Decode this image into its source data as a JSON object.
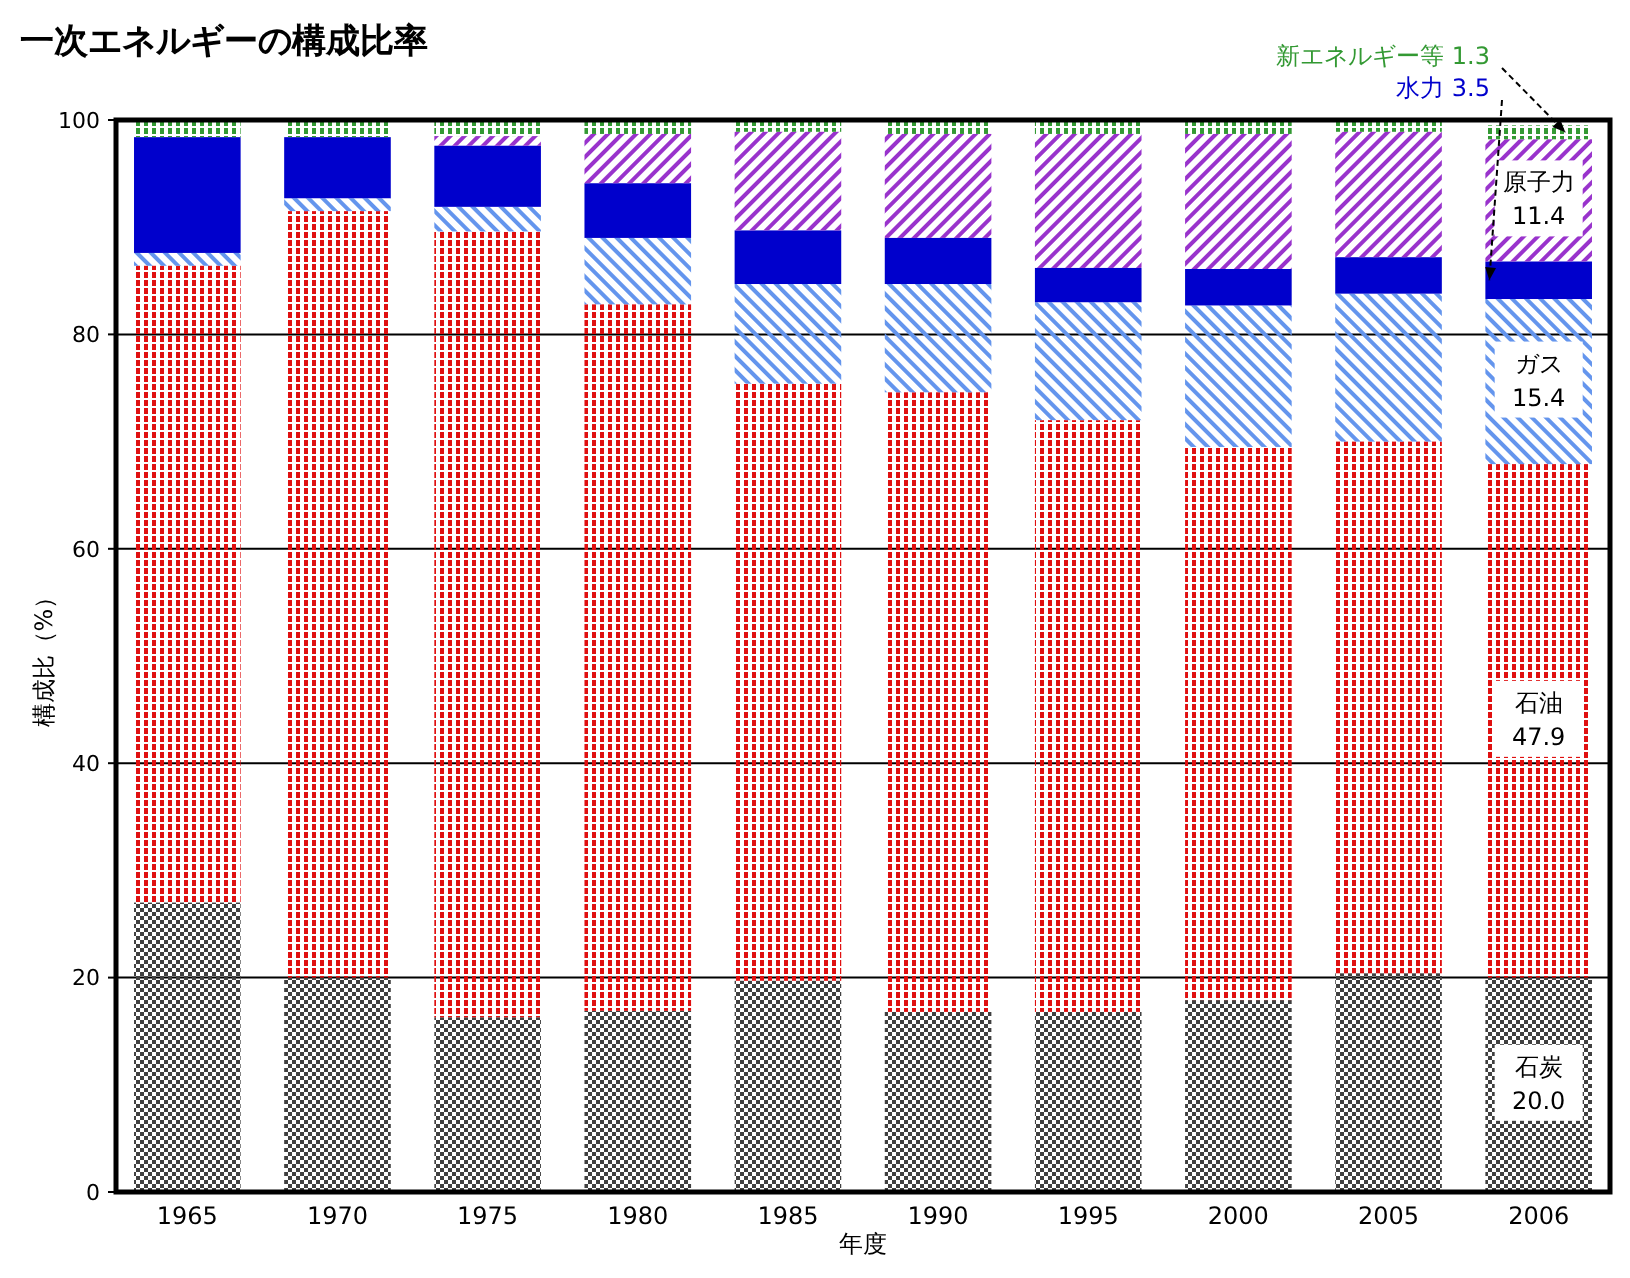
{
  "chart_data": {
    "type": "bar",
    "title": "一次エネルギーの構成比率",
    "xlabel": "年度",
    "ylabel": "構成比（%）",
    "categories": [
      "1965",
      "1970",
      "1975",
      "1980",
      "1985",
      "1990",
      "1995",
      "2000",
      "2005",
      "2006"
    ],
    "stacked": true,
    "ylim": [
      0,
      100
    ],
    "yticks": [
      0,
      20,
      40,
      60,
      80,
      100
    ],
    "grid": "y",
    "series": [
      {
        "name": "石炭",
        "color": "#404040",
        "values": [
          27.0,
          20.0,
          16.3,
          16.9,
          19.7,
          16.8,
          16.8,
          17.9,
          20.4,
          20.0
        ],
        "value_labels": [
          null,
          null,
          null,
          null,
          null,
          null,
          null,
          null,
          null,
          "20.0"
        ]
      },
      {
        "name": "石油",
        "color": "#e01010",
        "values": [
          59.4,
          71.5,
          73.3,
          65.9,
          55.7,
          57.8,
          55.2,
          51.6,
          49.6,
          47.9
        ],
        "value_labels": [
          null,
          null,
          null,
          null,
          null,
          null,
          null,
          null,
          null,
          "47.9"
        ]
      },
      {
        "name": "ガス",
        "color": "#6495ed",
        "values": [
          1.2,
          1.2,
          2.3,
          6.2,
          9.3,
          10.1,
          11.0,
          13.2,
          13.8,
          15.4
        ],
        "value_labels": [
          null,
          null,
          null,
          null,
          null,
          null,
          null,
          null,
          null,
          "15.4"
        ]
      },
      {
        "name": "水力",
        "color": "#0000cc",
        "values": [
          10.8,
          5.7,
          5.7,
          5.1,
          5.0,
          4.3,
          3.2,
          3.4,
          3.4,
          3.5
        ],
        "value_labels": [
          null,
          null,
          null,
          null,
          null,
          null,
          null,
          null,
          null,
          "3.5"
        ]
      },
      {
        "name": "原子力",
        "color": "#9933cc",
        "values": [
          0,
          0,
          0.9,
          4.6,
          9.2,
          9.7,
          12.5,
          12.6,
          11.7,
          11.4
        ],
        "value_labels": [
          null,
          null,
          null,
          null,
          null,
          null,
          null,
          null,
          null,
          "11.4"
        ]
      },
      {
        "name": "新エネルギー等",
        "color": "#339933",
        "values": [
          1.6,
          1.6,
          1.5,
          1.3,
          1.1,
          1.3,
          1.3,
          1.3,
          1.1,
          1.3
        ],
        "value_labels": [
          null,
          null,
          null,
          null,
          null,
          null,
          null,
          null,
          null,
          "1.3"
        ]
      }
    ]
  }
}
